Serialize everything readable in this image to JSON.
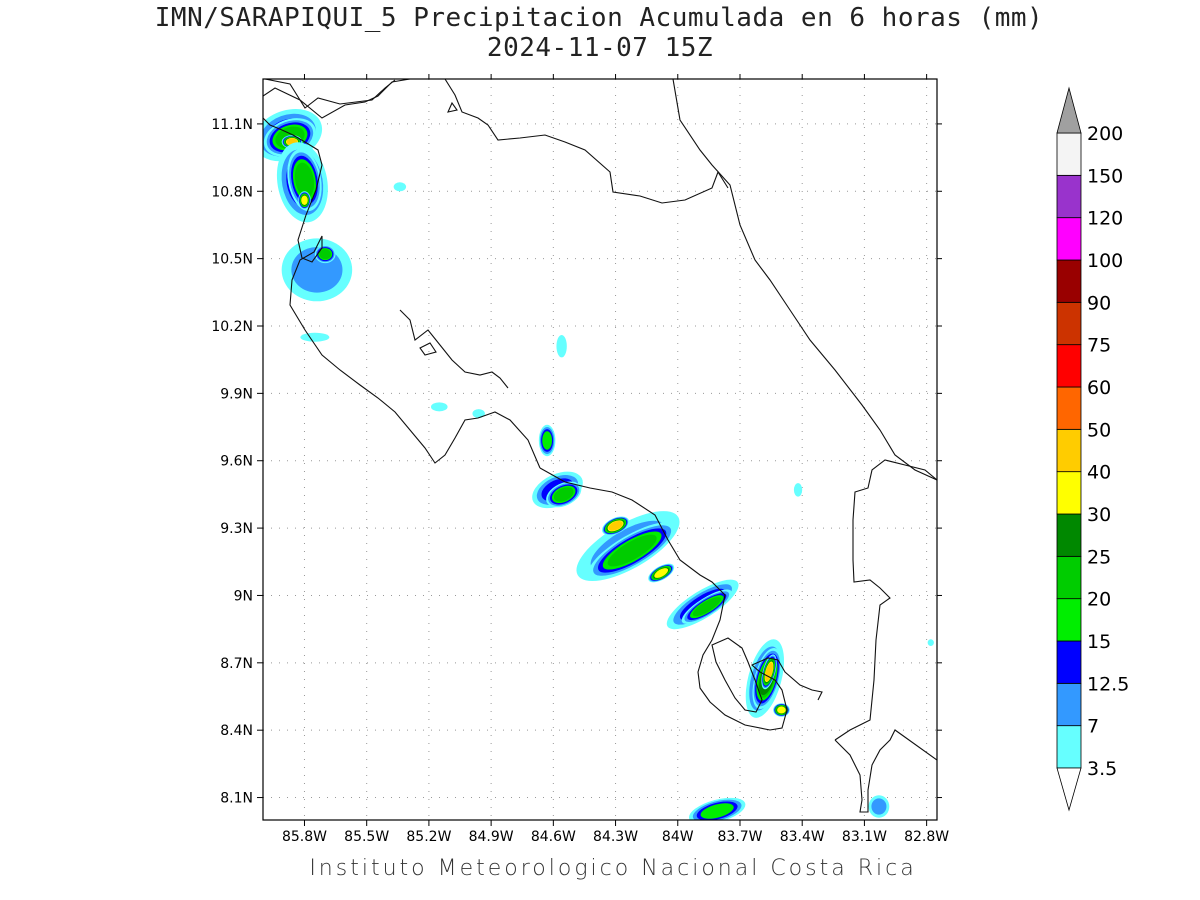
{
  "title": "IMN/SARAPIQUI_5 Precipitacion Acumulada en 6 horas (mm)",
  "subtitle": "2024-11-07 15Z",
  "footer": "Instituto Meteorologico Nacional Costa Rica",
  "map": {
    "lon_range": [
      -86.0,
      -82.75
    ],
    "lat_range": [
      8.0,
      11.3
    ],
    "lon_ticks": [
      -85.8,
      -85.5,
      -85.2,
      -84.9,
      -84.6,
      -84.3,
      -84.0,
      -83.7,
      -83.4,
      -83.1,
      -82.8
    ],
    "lon_labels": [
      "85.8W",
      "85.5W",
      "85.2W",
      "84.9W",
      "84.6W",
      "84.3W",
      "84W",
      "83.7W",
      "83.4W",
      "83.1W",
      "82.8W"
    ],
    "lat_ticks": [
      8.1,
      8.4,
      8.7,
      9.0,
      9.3,
      9.6,
      9.9,
      10.2,
      10.5,
      10.8,
      11.1
    ],
    "lat_labels": [
      "8.1N",
      "8.4N",
      "8.7N",
      "9N",
      "9.3N",
      "9.6N",
      "9.9N",
      "10.2N",
      "10.5N",
      "10.8N",
      "11.1N"
    ],
    "grid": "dotted"
  },
  "colorbar": {
    "labels": [
      "3.5",
      "7",
      "12.5",
      "15",
      "20",
      "25",
      "30",
      "40",
      "50",
      "60",
      "75",
      "90",
      "100",
      "120",
      "150",
      "200"
    ],
    "colors": [
      "#66ffff",
      "#3399ff",
      "#0000ff",
      "#00ee00",
      "#00cc00",
      "#008800",
      "#ffff00",
      "#ffcc00",
      "#ff6600",
      "#ff0000",
      "#cc3300",
      "#990000",
      "#ff00ff",
      "#9933cc",
      "#f4f4f4"
    ],
    "arrow_top_color": "#a0a0a0",
    "arrow_bottom_color": "#ffffff"
  },
  "precip_cells": [
    {
      "lon": -85.88,
      "lat": 11.05,
      "a": 0.17,
      "b": 0.11,
      "rot": 20,
      "level": 2
    },
    {
      "lon": -85.87,
      "lat": 11.04,
      "a": 0.13,
      "b": 0.08,
      "rot": 20,
      "level": 4
    },
    {
      "lon": -85.86,
      "lat": 11.02,
      "a": 0.05,
      "b": 0.03,
      "rot": 0,
      "level": 7
    },
    {
      "lon": -85.81,
      "lat": 10.84,
      "a": 0.12,
      "b": 0.18,
      "rot": 10,
      "level": 2
    },
    {
      "lon": -85.8,
      "lat": 10.85,
      "a": 0.08,
      "b": 0.14,
      "rot": 10,
      "level": 4
    },
    {
      "lon": -85.8,
      "lat": 10.76,
      "a": 0.03,
      "b": 0.04,
      "rot": 0,
      "level": 6
    },
    {
      "lon": -85.74,
      "lat": 10.45,
      "a": 0.17,
      "b": 0.14,
      "rot": 0,
      "level": 1
    },
    {
      "lon": -85.7,
      "lat": 10.52,
      "a": 0.05,
      "b": 0.04,
      "rot": 0,
      "level": 4
    },
    {
      "lon": -84.58,
      "lat": 9.47,
      "a": 0.13,
      "b": 0.07,
      "rot": 25,
      "level": 2
    },
    {
      "lon": -84.55,
      "lat": 9.45,
      "a": 0.09,
      "b": 0.05,
      "rot": 25,
      "level": 4
    },
    {
      "lon": -84.63,
      "lat": 9.69,
      "a": 0.04,
      "b": 0.07,
      "rot": 0,
      "level": 3
    },
    {
      "lon": -84.24,
      "lat": 9.22,
      "a": 0.28,
      "b": 0.1,
      "rot": 30,
      "level": 1
    },
    {
      "lon": -84.22,
      "lat": 9.2,
      "a": 0.24,
      "b": 0.07,
      "rot": 30,
      "level": 4
    },
    {
      "lon": -84.3,
      "lat": 9.31,
      "a": 0.07,
      "b": 0.035,
      "rot": 25,
      "level": 7
    },
    {
      "lon": -84.08,
      "lat": 9.1,
      "a": 0.07,
      "b": 0.03,
      "rot": 30,
      "level": 6
    },
    {
      "lon": -83.88,
      "lat": 8.96,
      "a": 0.2,
      "b": 0.06,
      "rot": 32,
      "level": 2
    },
    {
      "lon": -83.86,
      "lat": 8.95,
      "a": 0.14,
      "b": 0.04,
      "rot": 32,
      "level": 4
    },
    {
      "lon": -83.58,
      "lat": 8.63,
      "a": 0.08,
      "b": 0.18,
      "rot": -15,
      "level": 2
    },
    {
      "lon": -83.57,
      "lat": 8.63,
      "a": 0.06,
      "b": 0.14,
      "rot": -15,
      "level": 5
    },
    {
      "lon": -83.56,
      "lat": 8.66,
      "a": 0.03,
      "b": 0.08,
      "rot": -15,
      "level": 7
    },
    {
      "lon": -83.5,
      "lat": 8.49,
      "a": 0.04,
      "b": 0.03,
      "rot": 0,
      "level": 6
    },
    {
      "lon": -83.81,
      "lat": 8.04,
      "a": 0.14,
      "b": 0.05,
      "rot": 15,
      "level": 3
    },
    {
      "lon": -83.03,
      "lat": 8.06,
      "a": 0.05,
      "b": 0.05,
      "rot": 0,
      "level": 1
    },
    {
      "lon": -84.56,
      "lat": 10.11,
      "a": 0.025,
      "b": 0.05,
      "rot": 0,
      "level": 0
    },
    {
      "lon": -85.34,
      "lat": 10.82,
      "a": 0.03,
      "b": 0.02,
      "rot": 0,
      "level": 0
    },
    {
      "lon": -85.75,
      "lat": 10.15,
      "a": 0.07,
      "b": 0.02,
      "rot": 0,
      "level": 0
    },
    {
      "lon": -84.96,
      "lat": 9.81,
      "a": 0.03,
      "b": 0.02,
      "rot": 0,
      "level": 0
    },
    {
      "lon": -85.15,
      "lat": 9.84,
      "a": 0.04,
      "b": 0.02,
      "rot": 0,
      "level": 0
    },
    {
      "lon": -83.42,
      "lat": 9.47,
      "a": 0.02,
      "b": 0.03,
      "rot": 0,
      "level": 0
    },
    {
      "lon": -82.78,
      "lat": 8.79,
      "a": 0.015,
      "b": 0.015,
      "rot": 0,
      "level": 0
    }
  ]
}
